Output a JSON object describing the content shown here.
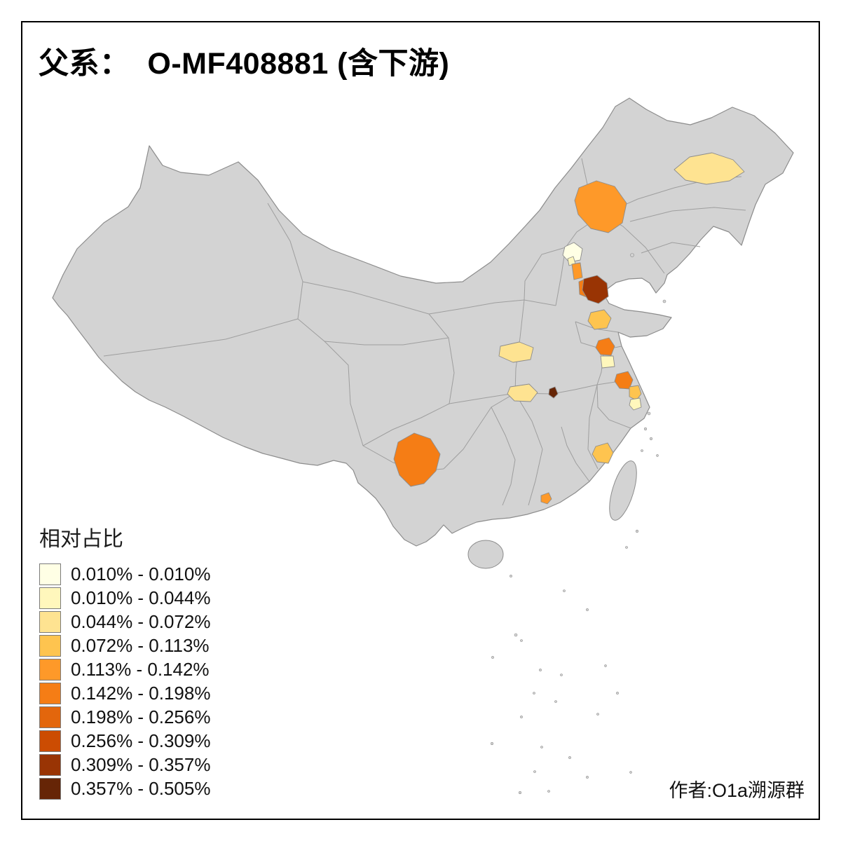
{
  "title": {
    "text": "父系：  O-MF408881 (含下游)"
  },
  "legend": {
    "title": "相对占比",
    "items": [
      {
        "label": "0.010% - 0.010%",
        "color": "#FFFFE5"
      },
      {
        "label": "0.010% - 0.044%",
        "color": "#FFF7BC"
      },
      {
        "label": "0.044% - 0.072%",
        "color": "#FEE391"
      },
      {
        "label": "0.072% - 0.113%",
        "color": "#FEC44F"
      },
      {
        "label": "0.113% - 0.142%",
        "color": "#FE9929"
      },
      {
        "label": "0.142% - 0.198%",
        "color": "#F57D15"
      },
      {
        "label": "0.198% - 0.256%",
        "color": "#E3660C"
      },
      {
        "label": "0.256% - 0.309%",
        "color": "#CC4C02"
      },
      {
        "label": "0.309% - 0.357%",
        "color": "#993404"
      },
      {
        "label": "0.357% - 0.505%",
        "color": "#662506"
      }
    ]
  },
  "map": {
    "land_color": "#d3d3d3",
    "boundary_color": "#9e9e9e",
    "outline_color": "#8c8c8c",
    "regions": [
      {
        "area": "heilongjiang-west",
        "bin": 2
      },
      {
        "area": "inner-mongolia-central",
        "bin": 4
      },
      {
        "area": "beijing-north",
        "bin": 0
      },
      {
        "area": "beijing-small",
        "bin": 1
      },
      {
        "area": "beijing-south",
        "bin": 4
      },
      {
        "area": "tianjin-west",
        "bin": 5
      },
      {
        "area": "tianjin",
        "bin": 8
      },
      {
        "area": "shandong-central",
        "bin": 3
      },
      {
        "area": "jiangsu-north",
        "bin": 5
      },
      {
        "area": "jiangsu-central",
        "bin": 1
      },
      {
        "area": "henan-west",
        "bin": 2
      },
      {
        "area": "hubei-west",
        "bin": 2
      },
      {
        "area": "hubei-small-dark",
        "bin": 9
      },
      {
        "area": "jiangsu-south",
        "bin": 5
      },
      {
        "area": "shanghai-north",
        "bin": 3
      },
      {
        "area": "shanghai",
        "bin": 1
      },
      {
        "area": "yunnan-central",
        "bin": 5
      },
      {
        "area": "fujian-coastal",
        "bin": 3
      },
      {
        "area": "guangdong-east",
        "bin": 4
      }
    ]
  },
  "credit": {
    "text": "作者:O1a溯源群"
  },
  "frame": {
    "border_color": "#000000",
    "background": "#ffffff"
  }
}
